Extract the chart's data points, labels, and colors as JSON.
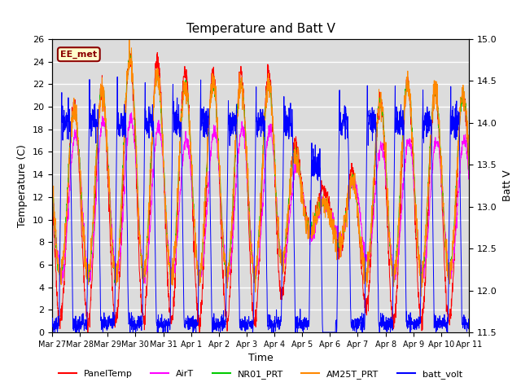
{
  "title": "Temperature and Batt V",
  "xlabel": "Time",
  "ylabel_left": "Temperature (C)",
  "ylabel_right": "Batt V",
  "ylim_left": [
    0,
    26
  ],
  "ylim_right": [
    11.5,
    15.0
  ],
  "yticks_left": [
    0,
    2,
    4,
    6,
    8,
    10,
    12,
    14,
    16,
    18,
    20,
    22,
    24,
    26
  ],
  "yticks_right": [
    11.5,
    12.0,
    12.5,
    13.0,
    13.5,
    14.0,
    14.5,
    15.0
  ],
  "xtick_labels": [
    "Mar 27",
    "Mar 28",
    "Mar 29",
    "Mar 30",
    "Mar 31",
    "Apr 1",
    "Apr 2",
    "Apr 3",
    "Apr 4",
    "Apr 5",
    "Apr 6",
    "Apr 7",
    "Apr 8",
    "Apr 9",
    "Apr 10",
    "Apr 11"
  ],
  "annotation_text": "EE_met",
  "annotation_color": "#8B0000",
  "annotation_bg": "#FFFFCC",
  "colors": {
    "PanelTemp": "#FF0000",
    "AirT": "#FF00FF",
    "NR01_PRT": "#00CC00",
    "AM25T_PRT": "#FF8800",
    "batt_volt": "#0000FF"
  },
  "legend_labels": [
    "PanelTemp",
    "AirT",
    "NR01_PRT",
    "AM25T_PRT",
    "batt_volt"
  ],
  "plot_bg": "#DCDCDC",
  "grid_color": "#FFFFFF",
  "n_days": 15,
  "points_per_day": 144
}
